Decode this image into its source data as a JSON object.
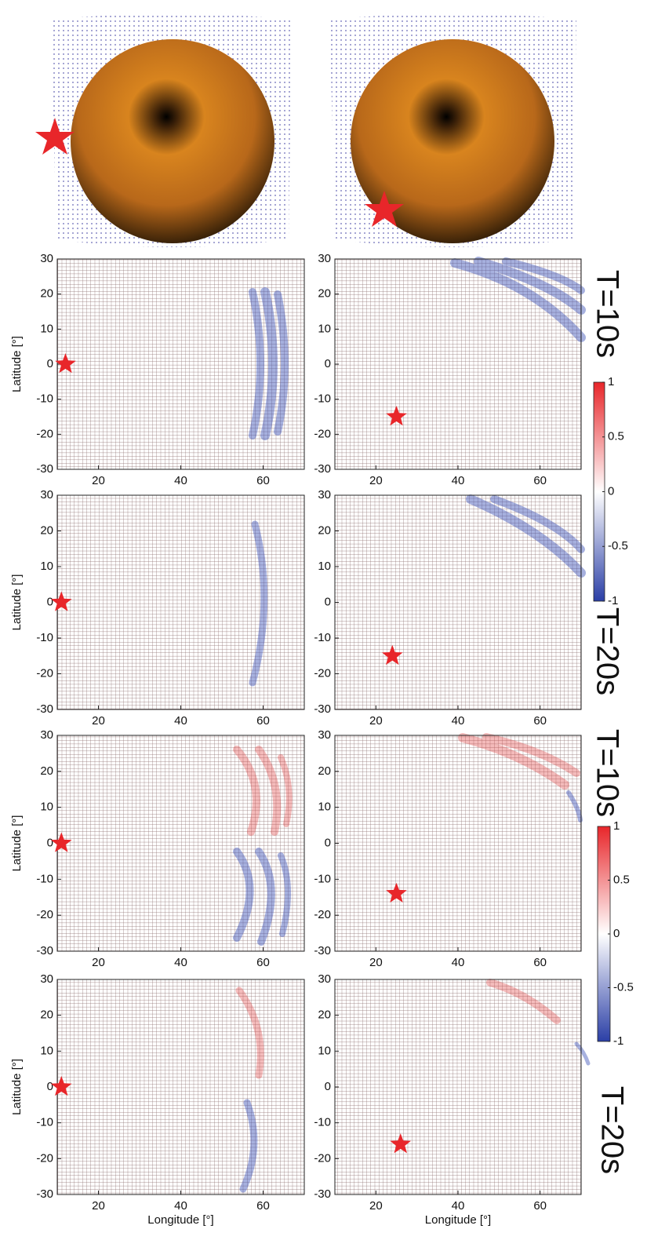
{
  "chart_data": [
    {
      "type": "heatmap",
      "ylabel": "Latitude [°]",
      "xlim": [
        10,
        70
      ],
      "ylim": [
        -30,
        30
      ],
      "xticks": [
        20,
        40,
        60
      ],
      "yticks": [
        -30,
        -20,
        -10,
        0,
        10,
        20,
        30
      ],
      "x": [
        12
      ],
      "values": [
        0
      ]
    },
    {
      "type": "heatmap",
      "xlim": [
        10,
        70
      ],
      "ylim": [
        -30,
        30
      ],
      "xticks": [
        20,
        40,
        60
      ],
      "yticks": [
        -30,
        -20,
        -10,
        0,
        10,
        20,
        30
      ],
      "x": [
        25
      ],
      "values": [
        -15
      ]
    },
    {
      "type": "heatmap",
      "ylabel": "Latitude [°]",
      "xlim": [
        10,
        70
      ],
      "ylim": [
        -30,
        30
      ],
      "xticks": [
        20,
        40,
        60
      ],
      "yticks": [
        -30,
        -20,
        -10,
        0,
        10,
        20,
        30
      ],
      "x": [
        11
      ],
      "values": [
        0
      ]
    },
    {
      "type": "heatmap",
      "xlim": [
        10,
        70
      ],
      "ylim": [
        -30,
        30
      ],
      "xticks": [
        20,
        40,
        60
      ],
      "yticks": [
        -30,
        -20,
        -10,
        0,
        10,
        20,
        30
      ],
      "x": [
        24
      ],
      "values": [
        -15
      ]
    },
    {
      "type": "heatmap",
      "ylabel": "Latitude [°]",
      "xlim": [
        10,
        70
      ],
      "ylim": [
        -30,
        30
      ],
      "xticks": [
        20,
        40,
        60
      ],
      "yticks": [
        -30,
        -20,
        -10,
        0,
        10,
        20,
        30
      ],
      "x": [
        11
      ],
      "values": [
        0
      ]
    },
    {
      "type": "heatmap",
      "xlim": [
        10,
        70
      ],
      "ylim": [
        -30,
        30
      ],
      "xticks": [
        20,
        40,
        60
      ],
      "yticks": [
        -30,
        -20,
        -10,
        0,
        10,
        20,
        30
      ],
      "x": [
        25
      ],
      "values": [
        -14
      ]
    },
    {
      "type": "heatmap",
      "ylabel": "Latitude [°]",
      "xlabel": "Longitude [°]",
      "xlim": [
        10,
        70
      ],
      "ylim": [
        -30,
        30
      ],
      "xticks": [
        20,
        40,
        60
      ],
      "yticks": [
        -30,
        -20,
        -10,
        0,
        10,
        20,
        30
      ],
      "x": [
        11
      ],
      "values": [
        0
      ]
    },
    {
      "type": "heatmap",
      "xlabel": "Longitude [°]",
      "xlim": [
        10,
        70
      ],
      "ylim": [
        -30,
        30
      ],
      "xticks": [
        20,
        40,
        60
      ],
      "yticks": [
        -30,
        -20,
        -10,
        0,
        10,
        20,
        30
      ],
      "x": [
        26
      ],
      "values": [
        -16
      ]
    },
    {
      "type": "colorbar",
      "ylim": [
        -1,
        1
      ],
      "yticks": [
        -1,
        -0.5,
        0,
        0.5,
        1
      ],
      "colors": [
        "#2b3fa6",
        "#ffffff",
        "#e8262a"
      ]
    },
    {
      "type": "colorbar",
      "ylim": [
        -1,
        1
      ],
      "yticks": [
        -1,
        -0.5,
        0,
        0.5,
        1
      ],
      "colors": [
        "#2b3fa6",
        "#ffffff",
        "#e8262a"
      ]
    }
  ],
  "annotations": [
    "T=10s",
    "T=20s",
    "T=10s",
    "T=20s"
  ]
}
